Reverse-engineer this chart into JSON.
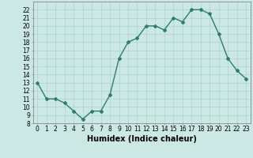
{
  "x": [
    0,
    1,
    2,
    3,
    4,
    5,
    6,
    7,
    8,
    9,
    10,
    11,
    12,
    13,
    14,
    15,
    16,
    17,
    18,
    19,
    20,
    21,
    22,
    23
  ],
  "y": [
    13,
    11,
    11,
    10.5,
    9.5,
    8.5,
    9.5,
    9.5,
    11.5,
    16,
    18,
    18.5,
    20,
    20,
    19.5,
    21,
    20.5,
    22,
    22,
    21.5,
    19,
    16,
    14.5,
    13.5
  ],
  "line_color": "#2e7d6e",
  "marker": "D",
  "marker_size": 2,
  "bg_color": "#cce8e4",
  "grid_color": "#aad4cf",
  "xlabel": "Humidex (Indice chaleur)",
  "ylim": [
    8,
    23
  ],
  "xlim": [
    -0.5,
    23.5
  ],
  "yticks": [
    8,
    9,
    10,
    11,
    12,
    13,
    14,
    15,
    16,
    17,
    18,
    19,
    20,
    21,
    22
  ],
  "xticks": [
    0,
    1,
    2,
    3,
    4,
    5,
    6,
    7,
    8,
    9,
    10,
    11,
    12,
    13,
    14,
    15,
    16,
    17,
    18,
    19,
    20,
    21,
    22,
    23
  ],
  "tick_fontsize": 5.5,
  "xlabel_fontsize": 7,
  "line_width": 1.0
}
